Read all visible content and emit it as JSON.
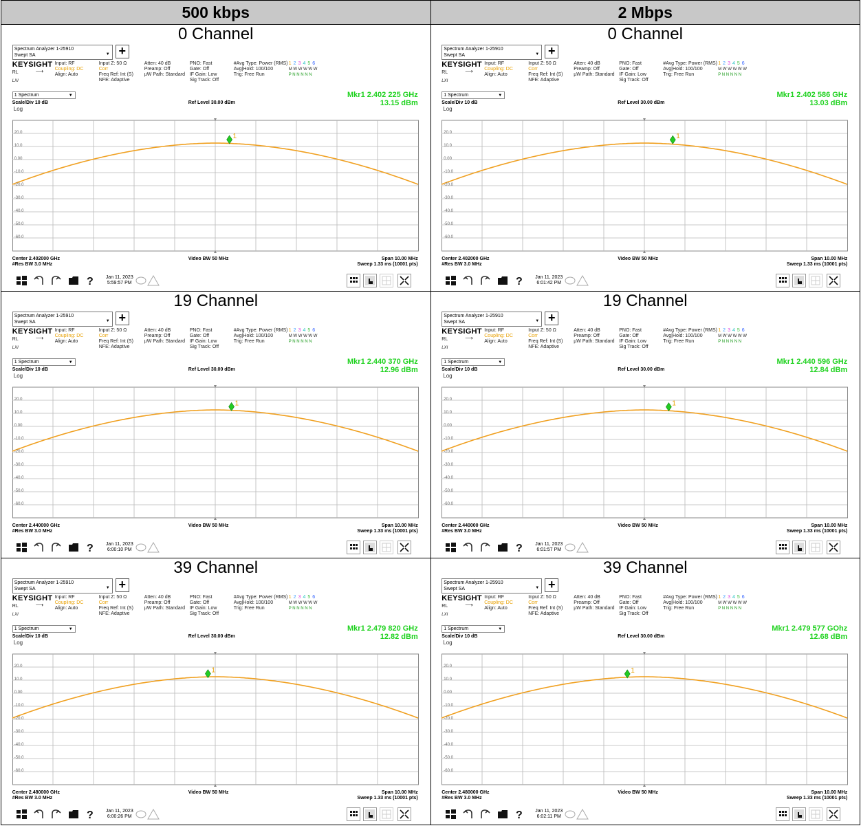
{
  "columns": [
    "500 kbps",
    "2 Mbps"
  ],
  "common": {
    "analyzer_title": "Spectrum Analyzer 1-25910",
    "analyzer_mode": "Swept SA",
    "plus_label": "+",
    "logo": "KEYSIGHT",
    "rl_label": "RL",
    "lxi": "LXI",
    "input_rf": "Input: RF",
    "coupling": "Coupling: DC",
    "align": "Align: Auto",
    "input_z": "Input Z: 50 Ω",
    "corr": "Corr",
    "freq_ref": "Freq Ref: Int (S)",
    "nfe": "NFE: Adaptive",
    "atten": "Atten: 40 dB",
    "preamp": "Preamp: Off",
    "uw_path": "µW Path: Standard",
    "pno": "PNO: Fast",
    "gate": "Gate: Off",
    "if_gain": "IF Gain: Low",
    "sig_track": "Sig Track: Off",
    "avg_type": "#Avg Type: Power (RMS)",
    "avg_hold": "Avg|Hold: 100/100",
    "trig": "Trig: Free Run",
    "trace_nums": [
      "1",
      "2",
      "3",
      "4",
      "5",
      "6"
    ],
    "trace_colors": [
      "#e8a000",
      "#40a0ff",
      "#e040e0",
      "#20c0c0",
      "#40c040",
      "#3060ff"
    ],
    "m_row": "M W W W W W",
    "p_row": "P N N N N N",
    "spectrum_select": "1 Spectrum",
    "scale_div": "Scale/Div 10 dB",
    "ref_level": "Ref Level 30.00 dBm",
    "log_label": "Log",
    "y_ticks": [
      "20.0",
      "10.0",
      "0.00",
      "-10.0",
      "-20.0",
      "-30.0",
      "-40.0",
      "-50.0",
      "-60.0"
    ],
    "video_bw": "Video BW 50 MHz",
    "res_bw": "#Res BW 3.0 MHz",
    "span": "Span 10.00 MHz",
    "sweep": "Sweep 1.33 ms (10001 pts)",
    "date": "Jan 11, 2023",
    "marker_label": "1",
    "trace_color": "#f0a020",
    "marker_color": "#22cc22",
    "grid_color": "#b8b8b8"
  },
  "cells": [
    {
      "channel_title": "0 Channel",
      "mkr_freq": "Mkr1  2.402 225 GHz",
      "mkr_level": "13.15 dBm",
      "center": "Center 2.402000 GHz",
      "time": "5:59:57 PM",
      "marker_x_fraction": 0.535,
      "marker_db": 13.15
    },
    {
      "channel_title": "0 Channel",
      "mkr_freq": "Mkr1  2.402 586 GHz",
      "mkr_level": "13.03 dBm",
      "center": "Center 2.402000 GHz",
      "time": "6:01:42 PM",
      "marker_x_fraction": 0.57,
      "marker_db": 13.03
    },
    {
      "channel_title": "19 Channel",
      "mkr_freq": "Mkr1  2.440 370 GHz",
      "mkr_level": "12.96 dBm",
      "center": "Center 2.440000 GHz",
      "time": "6:00:10 PM",
      "marker_x_fraction": 0.54,
      "marker_db": 12.96
    },
    {
      "channel_title": "19 Channel",
      "mkr_freq": "Mkr1  2.440 596 GHz",
      "mkr_level": "12.84 dBm",
      "center": "Center 2.440000 GHz",
      "time": "6:01:57 PM",
      "marker_x_fraction": 0.56,
      "marker_db": 12.84
    },
    {
      "channel_title": "39 Channel",
      "mkr_freq": "Mkr1  2.479 820 GHz",
      "mkr_level": "12.82 dBm",
      "center": "Center 2.480000 GHz",
      "time": "6:00:26 PM",
      "marker_x_fraction": 0.482,
      "marker_db": 12.82
    },
    {
      "channel_title": "39 Channel",
      "mkr_freq": "Mkr1  2.479 577 GOhz",
      "mkr_level": "12.68 dBm",
      "center": "Center 2.480000 GHz",
      "time": "6:02:11 PM",
      "marker_x_fraction": 0.458,
      "marker_db": 12.68
    }
  ]
}
